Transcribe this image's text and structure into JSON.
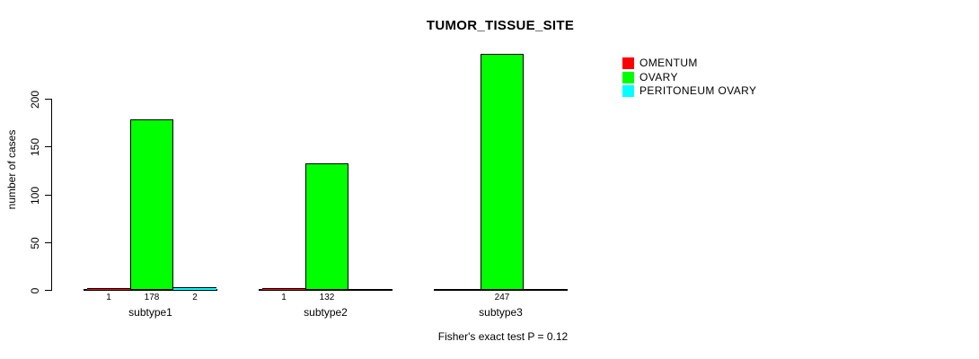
{
  "page": {
    "background": "#ffffff"
  },
  "chart_data": {
    "type": "bar",
    "title": "TUMOR_TISSUE_SITE",
    "ylabel": "number of cases",
    "xlabel": "",
    "categories": [
      "subtype1",
      "subtype2",
      "subtype3"
    ],
    "series": [
      {
        "name": "OMENTUM",
        "color": "#ff0000",
        "values": [
          1,
          1,
          0
        ]
      },
      {
        "name": "OVARY",
        "color": "#00ff00",
        "values": [
          178,
          132,
          247
        ]
      },
      {
        "name": "PERITONEUM OVARY",
        "color": "#00ffff",
        "values": [
          2,
          0,
          0
        ]
      }
    ],
    "bar_value_labels": [
      [
        "1",
        "178",
        "2"
      ],
      [
        "1",
        "132",
        ""
      ],
      [
        "",
        "247",
        ""
      ]
    ],
    "yticks": [
      0,
      50,
      100,
      150,
      200
    ],
    "ylim": [
      0,
      250
    ],
    "grid": false,
    "legend_position": "right",
    "annotation": "Fisher's exact test P = 0.12",
    "axis_color": "#000000"
  }
}
